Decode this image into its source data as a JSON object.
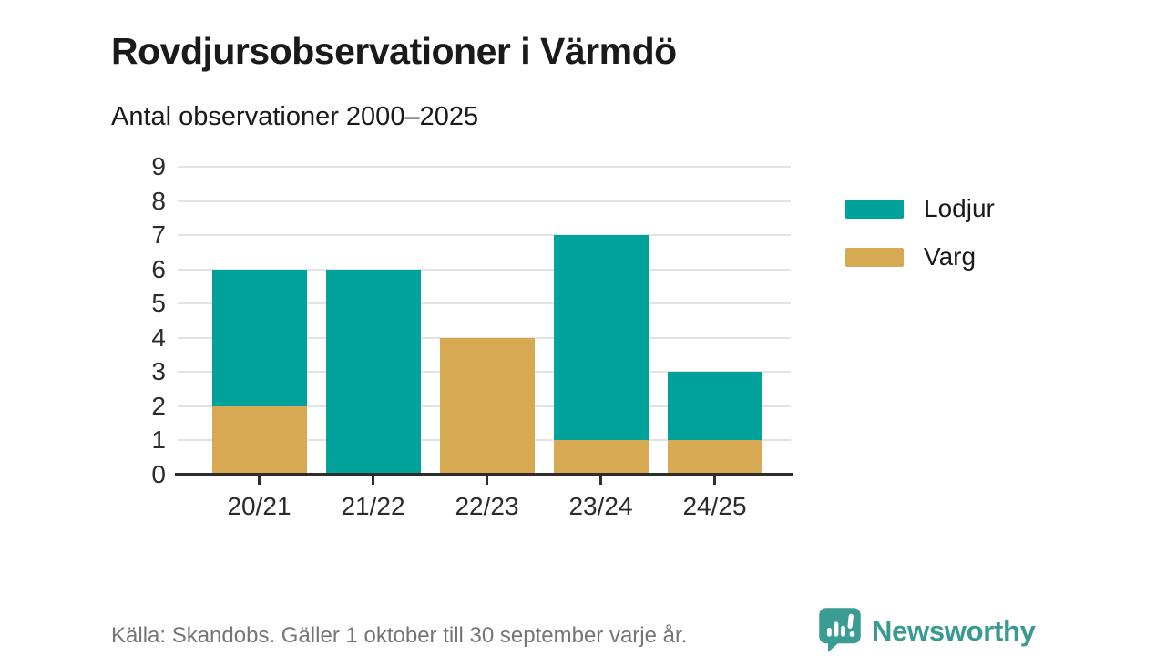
{
  "header": {
    "title": "Rovdjursobservationer i Värmdö",
    "subtitle": "Antal observationer 2000–2025"
  },
  "chart_data": {
    "type": "bar",
    "stacked": true,
    "title": "Rovdjursobservationer i Värmdö",
    "subtitle": "Antal observationer 2000–2025",
    "xlabel": "",
    "ylabel": "",
    "categories": [
      "20/21",
      "21/22",
      "22/23",
      "23/24",
      "24/25"
    ],
    "series": [
      {
        "name": "Lodjur",
        "color": "#00a29b",
        "values": [
          4,
          6,
          0,
          6,
          2
        ]
      },
      {
        "name": "Varg",
        "color": "#d8a953",
        "values": [
          2,
          0,
          4,
          1,
          1
        ]
      }
    ],
    "stack_totals": [
      6,
      6,
      4,
      7,
      3
    ],
    "ylim": [
      0,
      9
    ],
    "yticks": [
      0,
      1,
      2,
      3,
      4,
      5,
      6,
      7,
      8,
      9
    ],
    "grid": true,
    "legend_position": "right"
  },
  "footer": {
    "source": "Källa: Skandobs. Gäller 1 oktober till 30 september varje år.",
    "brand": "Newsworthy"
  },
  "colors": {
    "lodjur": "#00a29b",
    "varg": "#d8a953",
    "gridline": "#e3e3e3",
    "axis": "#2d2d2d",
    "text": "#1a1a1a",
    "muted_text": "#757575",
    "brand_teal": "#3a9a91"
  }
}
